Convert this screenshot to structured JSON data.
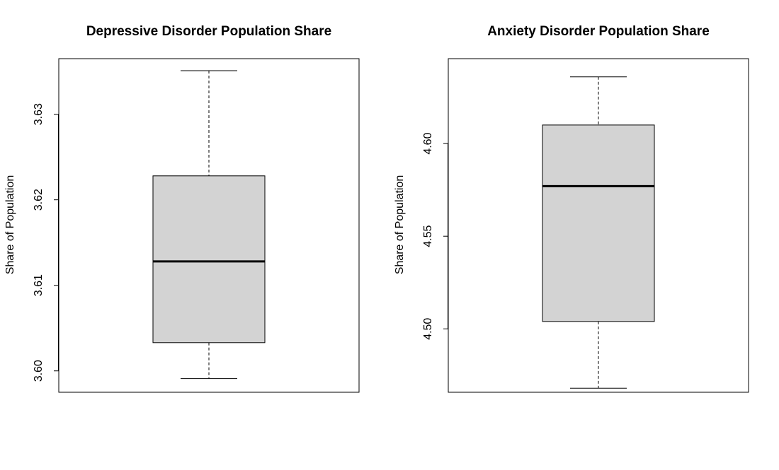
{
  "chart_data": [
    {
      "type": "boxplot",
      "title": "Depressive Disorder Population Share",
      "xlabel": "",
      "ylabel": "Share of Population",
      "ylim": [
        3.5975,
        3.6365
      ],
      "yticks": [
        "3.60",
        "3.61",
        "3.62",
        "3.63"
      ],
      "ytick_values": [
        3.6,
        3.61,
        3.62,
        3.63
      ],
      "grid": false,
      "stats": {
        "min": 3.5991,
        "q1": 3.6033,
        "median": 3.6128,
        "q3": 3.6228,
        "max": 3.6351
      },
      "colors": {
        "box_fill": "#d3d3d3",
        "stroke": "#000000"
      }
    },
    {
      "type": "boxplot",
      "title": "Anxiety Disorder Population Share",
      "xlabel": "",
      "ylabel": "Share of Population",
      "ylim": [
        4.4658,
        4.6458
      ],
      "yticks": [
        "4.50",
        "4.55",
        "4.60"
      ],
      "ytick_values": [
        4.5,
        4.55,
        4.6
      ],
      "grid": false,
      "stats": {
        "min": 4.468,
        "q1": 4.504,
        "median": 4.577,
        "q3": 4.61,
        "max": 4.636
      },
      "colors": {
        "box_fill": "#d3d3d3",
        "stroke": "#000000"
      }
    }
  ]
}
